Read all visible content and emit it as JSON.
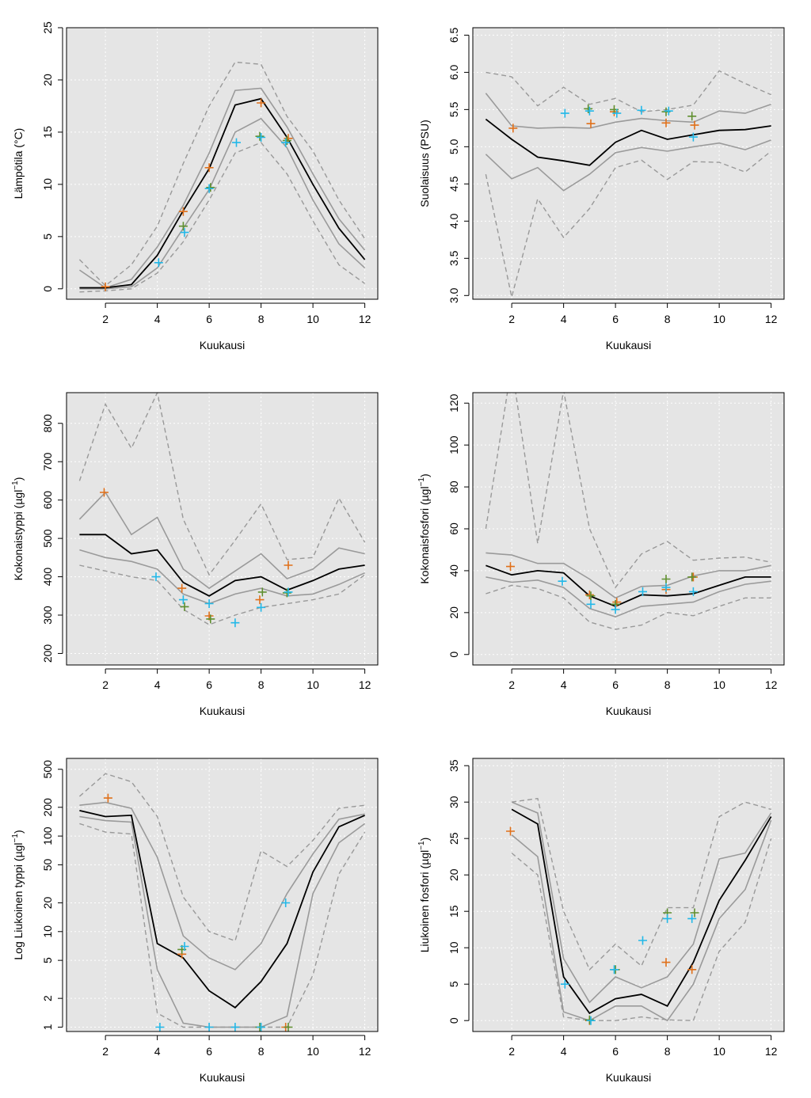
{
  "figure": {
    "colors": {
      "panel_bg": "#e5e5e5",
      "grid": "#ffffff",
      "median": "#000000",
      "inner_band": "#9a9a9a",
      "outer_band": "#999999",
      "obs_orange": "#e0701a",
      "obs_cyan": "#22b8e8",
      "obs_green": "#5f8f2f"
    }
  },
  "chart_data": [
    {
      "type": "line",
      "xlabel": "Kuukausi",
      "ylabel": "Lämpötila (°C)",
      "xlim": [
        0.5,
        12.5
      ],
      "ylim": [
        -1,
        25
      ],
      "xticks": [
        2,
        4,
        6,
        8,
        10,
        12
      ],
      "yticks": [
        0,
        5,
        10,
        15,
        20,
        25
      ],
      "ytick_labels": [
        "0",
        "5",
        "10",
        "15",
        "20",
        "25"
      ],
      "grid": true,
      "log_y": false,
      "x": [
        1,
        2,
        3,
        4,
        5,
        6,
        7,
        8,
        9,
        10,
        11,
        12
      ],
      "median": [
        0.1,
        0.1,
        0.4,
        3.2,
        7.5,
        11.5,
        17.6,
        18.2,
        14.5,
        10.0,
        5.8,
        2.8
      ],
      "inner_upper": [
        1.8,
        0.1,
        0.9,
        4.0,
        8.0,
        13.0,
        19.0,
        19.2,
        15.5,
        11.0,
        6.7,
        3.7
      ],
      "inner_lower": [
        0.0,
        0.0,
        0.2,
        2.0,
        5.8,
        9.5,
        15.0,
        16.3,
        13.5,
        8.5,
        4.3,
        2.0
      ],
      "outer_upper": [
        2.8,
        0.3,
        2.3,
        6.0,
        12.0,
        17.5,
        21.7,
        21.5,
        16.5,
        13.2,
        8.5,
        4.8
      ],
      "outer_lower": [
        -0.3,
        -0.2,
        0.0,
        1.5,
        4.5,
        8.5,
        13.0,
        14.0,
        11.0,
        6.5,
        2.3,
        0.5
      ],
      "obs": [
        {
          "series": "orange",
          "x": 2,
          "y": 0.2
        },
        {
          "series": "orange",
          "x": 5,
          "y": 7.4
        },
        {
          "series": "orange",
          "x": 6,
          "y": 11.6
        },
        {
          "series": "orange",
          "x": 8,
          "y": 17.8
        },
        {
          "series": "orange",
          "x": 9.05,
          "y": 14.4
        },
        {
          "series": "green",
          "x": 5,
          "y": 6.0
        },
        {
          "series": "green",
          "x": 6.05,
          "y": 9.7
        },
        {
          "series": "green",
          "x": 7.95,
          "y": 14.6
        },
        {
          "series": "green",
          "x": 9.0,
          "y": 14.2
        },
        {
          "series": "cyan",
          "x": 4.05,
          "y": 2.5
        },
        {
          "series": "cyan",
          "x": 5.05,
          "y": 5.4
        },
        {
          "series": "cyan",
          "x": 6.0,
          "y": 9.6
        },
        {
          "series": "cyan",
          "x": 7.05,
          "y": 14.0
        },
        {
          "series": "cyan",
          "x": 8.0,
          "y": 14.5
        },
        {
          "series": "cyan",
          "x": 8.95,
          "y": 14.0
        }
      ]
    },
    {
      "type": "line",
      "xlabel": "Kuukausi",
      "ylabel": "Suolaisuus (PSU)",
      "xlim": [
        0.5,
        12.5
      ],
      "ylim": [
        2.95,
        6.6
      ],
      "xticks": [
        2,
        4,
        6,
        8,
        10,
        12
      ],
      "yticks": [
        3.0,
        3.5,
        4.0,
        4.5,
        5.0,
        5.5,
        6.0,
        6.5
      ],
      "ytick_labels": [
        "3.0",
        "3.5",
        "4.0",
        "4.5",
        "5.0",
        "5.5",
        "6.0",
        "6.5"
      ],
      "grid": true,
      "log_y": false,
      "x": [
        1,
        2,
        3,
        4,
        5,
        6,
        7,
        8,
        9,
        10,
        11,
        12
      ],
      "median": [
        5.37,
        5.1,
        4.86,
        4.81,
        4.75,
        5.06,
        5.22,
        5.1,
        5.16,
        5.22,
        5.23,
        5.28
      ],
      "inner_upper": [
        5.72,
        5.28,
        5.25,
        5.26,
        5.25,
        5.33,
        5.38,
        5.35,
        5.33,
        5.48,
        5.45,
        5.57
      ],
      "inner_lower": [
        4.9,
        4.57,
        4.72,
        4.41,
        4.63,
        4.92,
        4.99,
        4.94,
        5.0,
        5.05,
        4.96,
        5.09
      ],
      "outer_upper": [
        6.0,
        5.94,
        5.55,
        5.8,
        5.57,
        5.65,
        5.47,
        5.5,
        5.56,
        6.02,
        5.85,
        5.7
      ],
      "outer_lower": [
        4.63,
        2.98,
        4.3,
        3.78,
        4.17,
        4.72,
        4.82,
        4.56,
        4.8,
        4.79,
        4.66,
        4.94
      ],
      "obs": [
        {
          "series": "orange",
          "x": 2.05,
          "y": 5.25
        },
        {
          "series": "orange",
          "x": 5.05,
          "y": 5.31
        },
        {
          "series": "orange",
          "x": 5.95,
          "y": 5.47
        },
        {
          "series": "orange",
          "x": 7.95,
          "y": 5.32
        },
        {
          "series": "orange",
          "x": 9.05,
          "y": 5.29
        },
        {
          "series": "green",
          "x": 4.95,
          "y": 5.51
        },
        {
          "series": "green",
          "x": 5.95,
          "y": 5.5
        },
        {
          "series": "green",
          "x": 7.95,
          "y": 5.47
        },
        {
          "series": "green",
          "x": 8.95,
          "y": 5.41
        },
        {
          "series": "cyan",
          "x": 4.05,
          "y": 5.45
        },
        {
          "series": "cyan",
          "x": 5.0,
          "y": 5.48
        },
        {
          "series": "cyan",
          "x": 6.05,
          "y": 5.45
        },
        {
          "series": "cyan",
          "x": 7.0,
          "y": 5.49
        },
        {
          "series": "cyan",
          "x": 8.05,
          "y": 5.48
        },
        {
          "series": "cyan",
          "x": 9.0,
          "y": 5.13
        }
      ]
    },
    {
      "type": "line",
      "xlabel": "Kuukausi",
      "ylabel": "Kokonaistyppi (µgl",
      "ylabel_sup": "−1",
      "ylabel_suffix": ")",
      "xlim": [
        0.5,
        12.5
      ],
      "ylim": [
        170,
        880
      ],
      "xticks": [
        2,
        4,
        6,
        8,
        10,
        12
      ],
      "yticks": [
        200,
        300,
        400,
        500,
        600,
        700,
        800
      ],
      "ytick_labels": [
        "200",
        "300",
        "400",
        "500",
        "600",
        "700",
        "800"
      ],
      "grid": true,
      "log_y": false,
      "x": [
        1,
        2,
        3,
        4,
        5,
        6,
        7,
        8,
        9,
        10,
        11,
        12
      ],
      "median": [
        510,
        510,
        460,
        470,
        385,
        350,
        390,
        400,
        365,
        390,
        420,
        430
      ],
      "inner_upper": [
        550,
        620,
        510,
        555,
        420,
        370,
        415,
        460,
        395,
        420,
        475,
        460
      ],
      "inner_lower": [
        470,
        450,
        440,
        420,
        355,
        330,
        355,
        370,
        350,
        355,
        380,
        410
      ],
      "outer_upper": [
        650,
        850,
        735,
        880,
        550,
        405,
        495,
        590,
        445,
        450,
        605,
        490
      ],
      "outer_lower": [
        430,
        415,
        400,
        390,
        315,
        275,
        300,
        320,
        330,
        340,
        355,
        405
      ],
      "obs": [
        {
          "series": "orange",
          "x": 1.95,
          "y": 620
        },
        {
          "series": "orange",
          "x": 4.95,
          "y": 370
        },
        {
          "series": "orange",
          "x": 6.0,
          "y": 298
        },
        {
          "series": "orange",
          "x": 7.95,
          "y": 340
        },
        {
          "series": "orange",
          "x": 9.05,
          "y": 430
        },
        {
          "series": "green",
          "x": 5.05,
          "y": 322
        },
        {
          "series": "green",
          "x": 6.05,
          "y": 290
        },
        {
          "series": "green",
          "x": 8.05,
          "y": 360
        },
        {
          "series": "green",
          "x": 9.0,
          "y": 358
        },
        {
          "series": "cyan",
          "x": 3.95,
          "y": 400
        },
        {
          "series": "cyan",
          "x": 5.0,
          "y": 340
        },
        {
          "series": "cyan",
          "x": 6.0,
          "y": 330
        },
        {
          "series": "cyan",
          "x": 7.0,
          "y": 280
        },
        {
          "series": "cyan",
          "x": 8.0,
          "y": 320
        },
        {
          "series": "cyan",
          "x": 9.05,
          "y": 360
        }
      ]
    },
    {
      "type": "line",
      "xlabel": "Kuukausi",
      "ylabel": "Kokonaisfosfori (µgl",
      "ylabel_sup": "−1",
      "ylabel_suffix": ")",
      "xlim": [
        0.5,
        12.5
      ],
      "ylim": [
        -5,
        125
      ],
      "xticks": [
        2,
        4,
        6,
        8,
        10,
        12
      ],
      "yticks": [
        0,
        20,
        40,
        60,
        80,
        100,
        120
      ],
      "ytick_labels": [
        "0",
        "20",
        "40",
        "60",
        "80",
        "100",
        "120"
      ],
      "grid": true,
      "log_y": false,
      "x": [
        1,
        2,
        3,
        4,
        5,
        6,
        7,
        8,
        9,
        10,
        11,
        12
      ],
      "median": [
        42.5,
        38,
        40,
        39,
        28,
        23,
        28.5,
        28,
        29,
        33,
        37,
        37
      ],
      "inner_upper": [
        48.5,
        47.5,
        43.5,
        43.5,
        36,
        27,
        32.5,
        33,
        37.5,
        40,
        40,
        42.5
      ],
      "inner_lower": [
        37,
        34.5,
        35.5,
        32,
        22,
        18,
        23,
        24,
        25,
        30,
        33.5,
        35
      ],
      "outer_upper": [
        60,
        138,
        53,
        126,
        60,
        32,
        48,
        54,
        45,
        46,
        46.5,
        44
      ],
      "outer_lower": [
        29,
        33,
        31.5,
        27,
        15.5,
        12,
        14,
        20,
        18.5,
        23,
        27,
        27
      ],
      "obs": [
        {
          "series": "orange",
          "x": 1.95,
          "y": 42
        },
        {
          "series": "orange",
          "x": 5.0,
          "y": 28.5
        },
        {
          "series": "orange",
          "x": 6.05,
          "y": 25
        },
        {
          "series": "orange",
          "x": 7.95,
          "y": 31
        },
        {
          "series": "orange",
          "x": 9.0,
          "y": 37
        },
        {
          "series": "green",
          "x": 5.05,
          "y": 28
        },
        {
          "series": "green",
          "x": 6.0,
          "y": 24
        },
        {
          "series": "green",
          "x": 7.95,
          "y": 36
        },
        {
          "series": "green",
          "x": 8.95,
          "y": 37
        },
        {
          "series": "cyan",
          "x": 3.95,
          "y": 35
        },
        {
          "series": "cyan",
          "x": 5.05,
          "y": 24
        },
        {
          "series": "cyan",
          "x": 6.0,
          "y": 21.5
        },
        {
          "series": "cyan",
          "x": 7.05,
          "y": 30
        },
        {
          "series": "cyan",
          "x": 7.95,
          "y": 32
        },
        {
          "series": "cyan",
          "x": 9.0,
          "y": 30
        }
      ]
    },
    {
      "type": "line",
      "xlabel": "Kuukausi",
      "ylabel": "Log Liukoinen typpi (µgl",
      "ylabel_sup": "−1",
      "ylabel_suffix": ")",
      "xlim": [
        0.5,
        12.5
      ],
      "ylim": [
        0.9,
        650
      ],
      "xticks": [
        2,
        4,
        6,
        8,
        10,
        12
      ],
      "yticks": [
        1,
        2,
        5,
        10,
        20,
        50,
        100,
        200,
        500
      ],
      "ytick_labels": [
        "1",
        "2",
        "5",
        "10",
        "20",
        "50",
        "100",
        "200",
        "500"
      ],
      "grid": true,
      "log_y": true,
      "x": [
        1,
        2,
        3,
        4,
        5,
        6,
        7,
        8,
        9,
        10,
        11,
        12
      ],
      "median": [
        185,
        160,
        165,
        7.5,
        5.3,
        2.4,
        1.6,
        3.0,
        7.5,
        42,
        125,
        165
      ],
      "inner_upper": [
        210,
        225,
        195,
        60,
        9,
        5.3,
        4.0,
        7.5,
        25,
        65,
        150,
        170
      ],
      "inner_lower": [
        160,
        145,
        140,
        4.0,
        1.1,
        1.0,
        1.0,
        1.0,
        1.3,
        25,
        85,
        135
      ],
      "outer_upper": [
        260,
        450,
        370,
        160,
        23,
        10,
        8,
        70,
        48,
        90,
        195,
        210
      ],
      "outer_lower": [
        135,
        110,
        105,
        1.4,
        1.0,
        1.0,
        1.0,
        1.0,
        1.0,
        3.5,
        40,
        110
      ],
      "obs": [
        {
          "series": "orange",
          "x": 2.1,
          "y": 250
        },
        {
          "series": "orange",
          "x": 4.95,
          "y": 5.8
        },
        {
          "series": "orange",
          "x": 8.95,
          "y": 1.0
        },
        {
          "series": "green",
          "x": 4.95,
          "y": 6.5
        },
        {
          "series": "green",
          "x": 7.95,
          "y": 1.0
        },
        {
          "series": "green",
          "x": 9.05,
          "y": 1.0
        },
        {
          "series": "cyan",
          "x": 4.1,
          "y": 1.0
        },
        {
          "series": "cyan",
          "x": 5.05,
          "y": 7.0
        },
        {
          "series": "cyan",
          "x": 6.0,
          "y": 1.0
        },
        {
          "series": "cyan",
          "x": 7.0,
          "y": 1.0
        },
        {
          "series": "cyan",
          "x": 8.0,
          "y": 1.0
        },
        {
          "series": "cyan",
          "x": 8.95,
          "y": 20
        }
      ]
    },
    {
      "type": "line",
      "xlabel": "Kuukausi",
      "ylabel": "Liukoinen fosfori (µgl",
      "ylabel_sup": "−1",
      "ylabel_suffix": ")",
      "xlim": [
        0.5,
        12.5
      ],
      "ylim": [
        -1.5,
        36
      ],
      "xticks": [
        2,
        4,
        6,
        8,
        10,
        12
      ],
      "yticks": [
        0,
        5,
        10,
        15,
        20,
        25,
        30,
        35
      ],
      "ytick_labels": [
        "0",
        "5",
        "10",
        "15",
        "20",
        "25",
        "30",
        "35"
      ],
      "grid": true,
      "log_y": false,
      "x": [
        2,
        3,
        4,
        5,
        6,
        7,
        8,
        9,
        10,
        11,
        12
      ],
      "median": [
        29,
        27,
        6,
        1,
        3,
        3.6,
        2,
        8,
        16.5,
        22,
        28
      ],
      "inner_upper": [
        30,
        28.5,
        8.5,
        2.5,
        6,
        4.5,
        6,
        10.5,
        22.2,
        23,
        28.5
      ],
      "inner_lower": [
        25.5,
        22.5,
        1.2,
        0,
        2,
        2,
        0,
        5,
        14,
        18,
        27.5
      ],
      "outer_upper": [
        30,
        30.5,
        15,
        7,
        10.5,
        7.5,
        15.5,
        15.5,
        28,
        30,
        29
      ],
      "outer_lower": [
        23,
        20,
        0.5,
        0,
        0,
        0.5,
        0.1,
        0,
        9.5,
        13.5,
        25
      ],
      "obs": [
        {
          "series": "orange",
          "x": 1.95,
          "y": 26
        },
        {
          "series": "orange",
          "x": 5.0,
          "y": 0
        },
        {
          "series": "orange",
          "x": 7.95,
          "y": 8
        },
        {
          "series": "orange",
          "x": 8.95,
          "y": 7
        },
        {
          "series": "green",
          "x": 5.0,
          "y": 0.1
        },
        {
          "series": "green",
          "x": 6.0,
          "y": 7
        },
        {
          "series": "green",
          "x": 8.0,
          "y": 14.8
        },
        {
          "series": "green",
          "x": 9.05,
          "y": 14.8
        },
        {
          "series": "cyan",
          "x": 4.05,
          "y": 5
        },
        {
          "series": "cyan",
          "x": 5.05,
          "y": 0
        },
        {
          "series": "cyan",
          "x": 5.95,
          "y": 7
        },
        {
          "series": "cyan",
          "x": 7.05,
          "y": 11
        },
        {
          "series": "cyan",
          "x": 8.0,
          "y": 14
        },
        {
          "series": "cyan",
          "x": 8.95,
          "y": 14
        }
      ]
    }
  ]
}
